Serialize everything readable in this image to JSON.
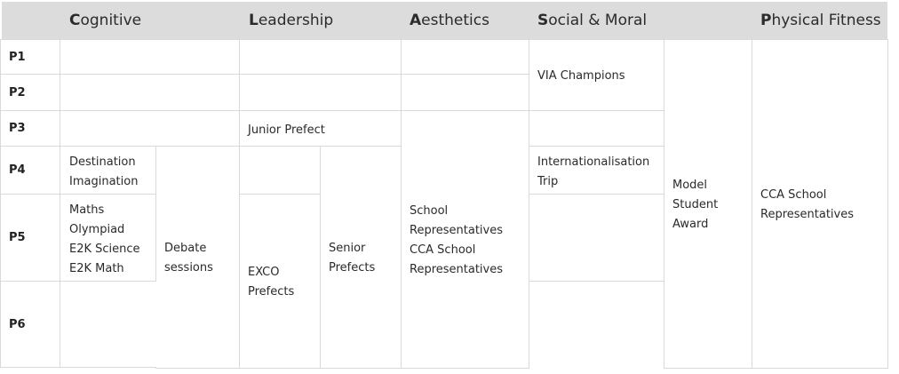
{
  "header": {
    "columns": [
      {
        "cap": "C",
        "rest": "ognitive"
      },
      {
        "cap": "L",
        "rest": "eadership"
      },
      {
        "cap": "A",
        "rest": "esthetics"
      },
      {
        "cap": "S",
        "rest": "ocial & Moral"
      },
      {
        "cap": "P",
        "rest": "hysical Fitness"
      }
    ]
  },
  "rows": [
    "P1",
    "P2",
    "P3",
    "P4",
    "P5",
    "P6"
  ],
  "cells": {
    "destination_imagination": "Destination\nImagination",
    "maths_olympiad": "Maths\nOlympiad\nE2K Science\nE2K Math",
    "debate_sessions": "Debate\nsessions",
    "junior_prefect": "Junior Prefect",
    "exco_prefects": "EXCO\nPrefects",
    "senior_prefects": "Senior\nPrefects",
    "aesthetics_reps": "School\nRepresentatives\nCCA School\nRepresentatives",
    "via_champions": "VIA Champions",
    "internationalisation_trip": "Internationalisation\nTrip",
    "model_student_award": "Model\nStudent\nAward",
    "physical_reps": "CCA School\nRepresentatives"
  },
  "colors": {
    "header_bg": "#dcdcdc",
    "border": "#d9d9d9",
    "text": "#2a2a2a"
  }
}
